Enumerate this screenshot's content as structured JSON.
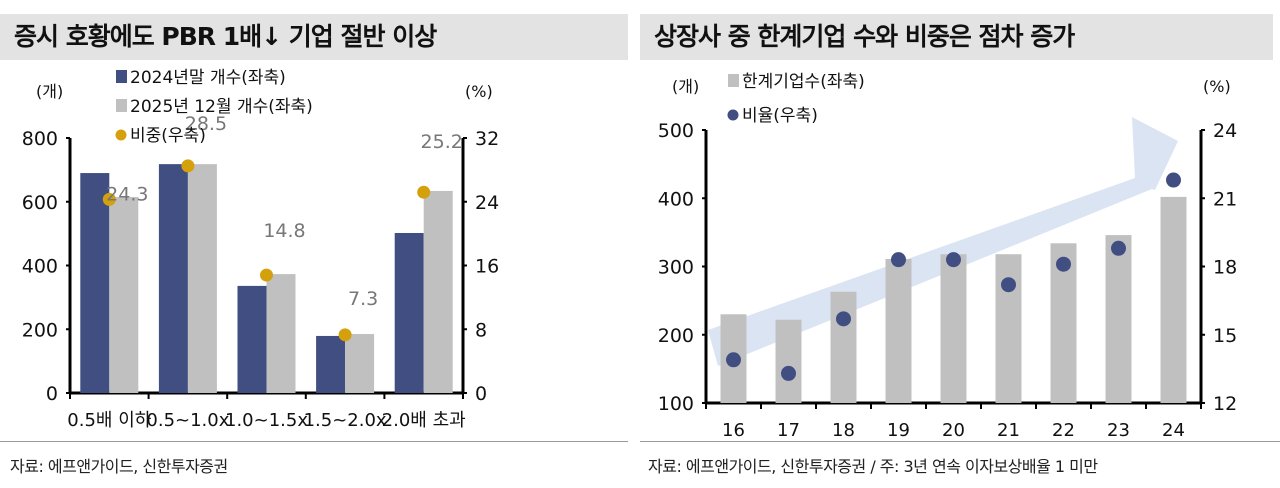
{
  "left": {
    "title": "증시 호황에도 PBR 1배↓ 기업 절반 이상",
    "source": "자료: 에프앤가이드, 신한투자증권"
  },
  "right": {
    "title": "상장사 중 한계기업 수와 비중은 점차 증가",
    "source": "자료: 에프앤가이드, 신한투자증권 / 주: 3년 연속 이자보상배율 1 미만"
  },
  "chart_data": [
    {
      "type": "bar",
      "categories": [
        "0.5배 이하",
        "0.5~1.0x",
        "1.0~1.5x",
        "1.5~2.0x",
        "2.0배 초과"
      ],
      "series": [
        {
          "name": "2024년말  개수(좌축)",
          "type": "bar",
          "axis": "left",
          "color": "#414e82",
          "values": [
            690,
            718,
            336,
            179,
            502
          ]
        },
        {
          "name": "2025년  12월 개수(좌축)",
          "type": "bar",
          "axis": "left",
          "color": "#c0c0c0",
          "values": [
            615,
            718,
            373,
            185,
            634
          ]
        },
        {
          "name": "비중(우축)",
          "type": "scatter",
          "axis": "right",
          "color": "#d4a00c",
          "values": [
            24.3,
            28.5,
            14.8,
            7.3,
            25.2
          ],
          "labels": [
            "24.3",
            "28.5",
            "14.8",
            "7.3",
            "25.2"
          ]
        }
      ],
      "yleft": {
        "unit": "(개)",
        "range": [
          0,
          800
        ],
        "ticks": [
          "0",
          "200",
          "400",
          "600",
          "800"
        ]
      },
      "yright": {
        "unit": "(%)",
        "range": [
          0,
          32
        ],
        "ticks": [
          "0",
          "8",
          "16",
          "24",
          "32"
        ]
      },
      "grid": false
    },
    {
      "type": "bar",
      "categories": [
        "16",
        "17",
        "18",
        "19",
        "20",
        "21",
        "22",
        "23",
        "24"
      ],
      "series": [
        {
          "name": "한계기업수(좌축)",
          "type": "bar",
          "axis": "left",
          "color": "#c0c0c0",
          "values": [
            230,
            222,
            263,
            311,
            318,
            318,
            334,
            346,
            402
          ]
        },
        {
          "name": "비율(우축)",
          "type": "scatter",
          "axis": "right",
          "color": "#414e82",
          "values": [
            13.9,
            13.3,
            15.7,
            18.3,
            18.3,
            17.2,
            18.1,
            18.8,
            21.8
          ]
        }
      ],
      "yleft": {
        "unit": "(개)",
        "range": [
          100,
          500
        ],
        "ticks": [
          "100",
          "200",
          "300",
          "400",
          "500"
        ]
      },
      "yright": {
        "unit": "(%)",
        "range": [
          12,
          24
        ],
        "ticks": [
          "12",
          "15",
          "18",
          "21",
          "24"
        ]
      },
      "annotation": "upward trend arrow",
      "arrow_color": "#dbe4f3",
      "grid": false
    }
  ]
}
